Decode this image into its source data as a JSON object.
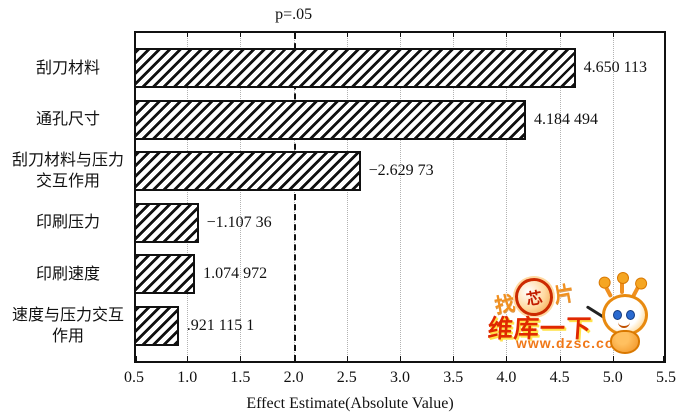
{
  "chart_data": {
    "type": "bar",
    "orientation": "horizontal",
    "title": "",
    "xlabel": "Effect Estimate(Absolute Value)",
    "ylabel": "",
    "xlim": [
      0.5,
      5.5
    ],
    "xticks": [
      0.5,
      1.0,
      1.5,
      2.0,
      2.5,
      3.0,
      3.5,
      4.0,
      4.5,
      5.0,
      5.5
    ],
    "grid": "dotted-vertical",
    "bar_fill": "diagonal-hatch",
    "categories": [
      "刮刀材料",
      "通孔尺寸",
      "刮刀材料与压力交互作用",
      "印刷压力",
      "印刷速度",
      "速度与压力交互作用"
    ],
    "values": [
      4.650113,
      4.184494,
      -2.62973,
      -1.10736,
      1.074972,
      0.9211151
    ],
    "value_labels": [
      "4.650 113",
      "4.184 494",
      "−2.629 73",
      "−1.107 36",
      "1.074 972",
      ".921 115 1"
    ],
    "reference_line": {
      "value": 2.0,
      "label": "p=.05",
      "style": "dashed"
    },
    "colors": {
      "line": "#111111",
      "background": "#ffffff"
    }
  },
  "watermark": {
    "top_text": "找芯片",
    "brand_text": "维库一下",
    "url_text": "www.dzsc.com",
    "colors": {
      "brand": "#e02800",
      "url": "#f07818",
      "accent": "#f5a623",
      "highlight": "#ffe24a"
    }
  }
}
